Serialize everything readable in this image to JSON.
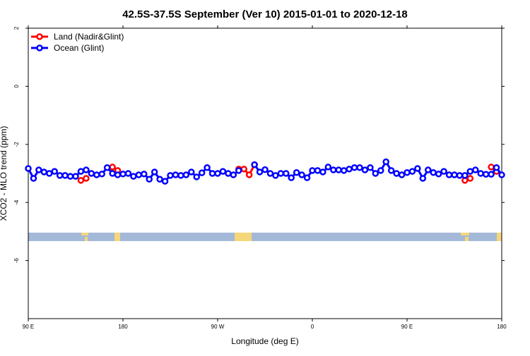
{
  "chart_data": {
    "type": "line",
    "title": "42.5S-37.5S September (Ver 10)   2015-01-01 to 2020-12-18",
    "x_label": "Longitude (deg E)",
    "y_label": "XCO2 - MLO trend (ppm)",
    "x": [
      90,
      95,
      100,
      105,
      110,
      115,
      120,
      125,
      130,
      135,
      140,
      145,
      150,
      155,
      160,
      165,
      170,
      175,
      180,
      185,
      190,
      195,
      200,
      205,
      210,
      215,
      220,
      225,
      230,
      235,
      240,
      245,
      250,
      255,
      260,
      265,
      270,
      275,
      280,
      285,
      290,
      295,
      300,
      305,
      310,
      315,
      320,
      325,
      330,
      335,
      340,
      345,
      350,
      355,
      360,
      365,
      370,
      375,
      380,
      385,
      390,
      395,
      400,
      405,
      410,
      415,
      420,
      425,
      430,
      435,
      440,
      445,
      450,
      455,
      460,
      465,
      470,
      475,
      480,
      485,
      490,
      495,
      500,
      505,
      510,
      515,
      520,
      525,
      530,
      535,
      540
    ],
    "series": [
      {
        "name": "Land (Nadir&Glint)",
        "color": "#ff0000",
        "values": [
          null,
          null,
          null,
          null,
          null,
          null,
          null,
          null,
          null,
          null,
          -3.24,
          -3.17,
          null,
          null,
          null,
          null,
          -2.78,
          -2.9,
          null,
          null,
          null,
          null,
          null,
          null,
          null,
          null,
          null,
          null,
          null,
          null,
          null,
          null,
          null,
          null,
          null,
          null,
          null,
          null,
          null,
          null,
          -2.85,
          -2.85,
          -3.05,
          -2.7,
          null,
          null,
          null,
          null,
          null,
          null,
          null,
          null,
          null,
          null,
          null,
          null,
          null,
          null,
          null,
          null,
          null,
          null,
          null,
          null,
          null,
          null,
          null,
          null,
          null,
          null,
          null,
          null,
          null,
          null,
          null,
          null,
          null,
          null,
          null,
          null,
          null,
          null,
          null,
          -3.24,
          -3.17,
          null,
          null,
          null,
          -2.78,
          -2.93,
          null
        ]
      },
      {
        "name": "Ocean (Glint)",
        "color": "#0000ff",
        "values": [
          -2.83,
          -3.17,
          -2.88,
          -2.95,
          -3.0,
          -2.93,
          -3.07,
          -3.07,
          -3.1,
          -3.1,
          -2.93,
          -2.88,
          -3.0,
          -3.05,
          -3.02,
          -2.8,
          -3.0,
          -3.05,
          -3.02,
          -3.0,
          -3.1,
          -3.05,
          -3.02,
          -3.2,
          -2.95,
          -3.2,
          -3.27,
          -3.07,
          -3.05,
          -3.07,
          -3.05,
          -2.95,
          -3.12,
          -2.98,
          -2.8,
          -3.0,
          -3.0,
          -2.93,
          -3.0,
          -3.05,
          -2.9,
          null,
          null,
          -2.7,
          -2.95,
          -2.87,
          -3.0,
          -3.07,
          -3.0,
          -3.0,
          -3.15,
          -2.97,
          -3.05,
          -3.15,
          -2.9,
          -2.9,
          -2.95,
          -2.78,
          -2.88,
          -2.88,
          -2.9,
          -2.85,
          -2.8,
          -2.8,
          -2.88,
          -2.8,
          -3.0,
          -2.9,
          -2.6,
          -2.9,
          -3.0,
          -3.05,
          -2.97,
          -2.93,
          -2.83,
          -3.17,
          -2.88,
          -2.97,
          -3.02,
          -2.93,
          -3.05,
          -3.05,
          -3.07,
          -3.07,
          -2.93,
          -2.88,
          -3.0,
          -3.03,
          -3.03,
          -2.8,
          -3.05
        ]
      }
    ],
    "xlim": [
      90,
      540
    ],
    "xticks": [
      {
        "value": 90,
        "label": "90 E"
      },
      180,
      {
        "value": 270,
        "label": "90 W"
      },
      {
        "value": 360,
        "label": "0"
      },
      {
        "value": 450,
        "label": "90 E"
      },
      {
        "value": 540,
        "label": "180"
      }
    ],
    "ylim": [
      -8,
      2
    ],
    "yticks": [
      2,
      0,
      -2,
      -4,
      -6
    ],
    "legend": "top-left"
  }
}
